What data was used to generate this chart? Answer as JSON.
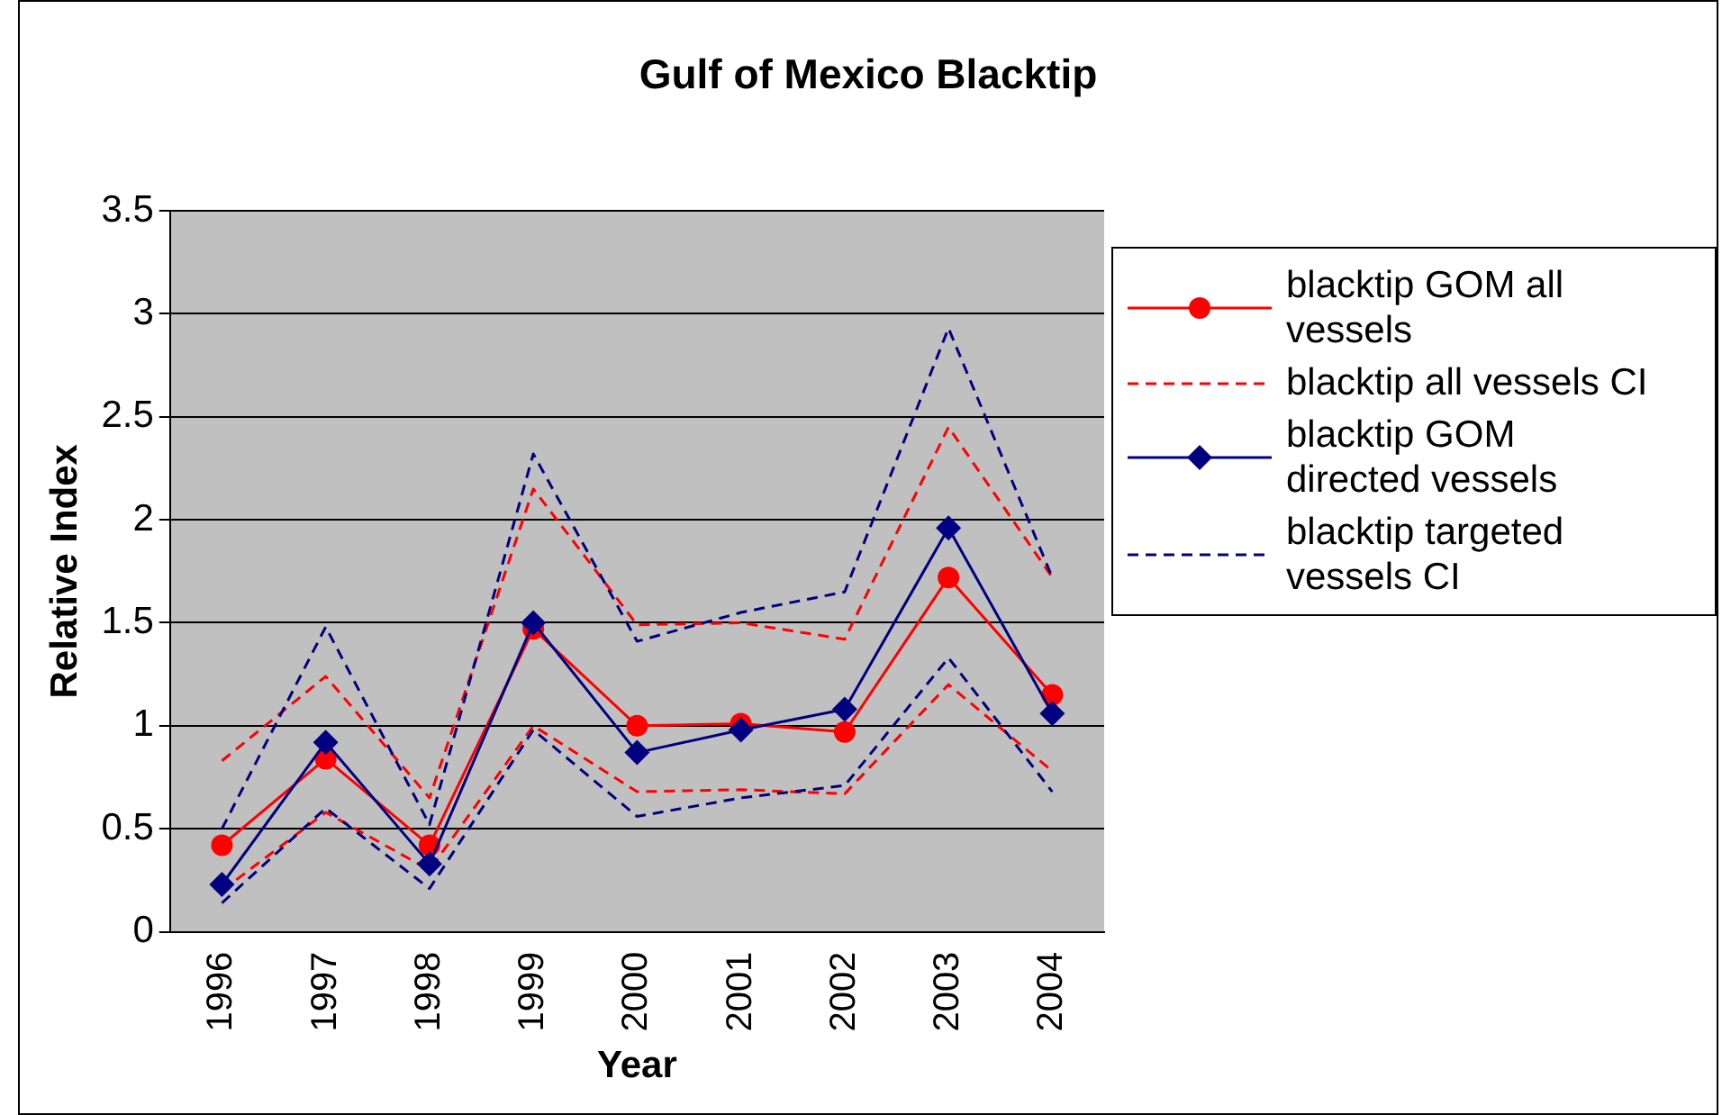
{
  "chart_data": {
    "type": "line",
    "title": "Gulf of Mexico Blacktip",
    "xlabel": "Year",
    "ylabel": "Relative Index",
    "categories": [
      "1996",
      "1997",
      "1998",
      "1999",
      "2000",
      "2001",
      "2002",
      "2003",
      "2004"
    ],
    "ylim": [
      0,
      3.5
    ],
    "yticks": [
      0,
      0.5,
      1,
      1.5,
      2,
      2.5,
      3,
      3.5
    ],
    "grid": "y",
    "legend": "right",
    "series": [
      {
        "name": "blacktip GOM all vessels",
        "color": "#ff0000",
        "marker": "circle",
        "line_style": "solid",
        "values": [
          0.42,
          0.84,
          0.42,
          1.47,
          1.0,
          1.01,
          0.97,
          1.72,
          1.15
        ]
      },
      {
        "name": "blacktip all vessels CI",
        "color": "#ff0000",
        "marker": "none",
        "line_style": "dashed",
        "values": [
          0.83,
          1.24,
          0.65,
          2.15,
          1.49,
          1.5,
          1.42,
          2.45,
          1.72
        ]
      },
      {
        "color": "#ff0000",
        "marker": "none",
        "line_style": "dashed",
        "values": [
          0.2,
          0.58,
          0.3,
          1.0,
          0.68,
          0.69,
          0.67,
          1.2,
          0.78
        ]
      },
      {
        "name": "blacktip GOM directed vessels",
        "color": "#000080",
        "marker": "diamond",
        "line_style": "solid",
        "values": [
          0.23,
          0.92,
          0.33,
          1.5,
          0.87,
          0.98,
          1.08,
          1.96,
          1.06
        ]
      },
      {
        "name": "blacktip targeted vessels CI",
        "color": "#000080",
        "marker": "none",
        "line_style": "dashed",
        "values": [
          0.5,
          1.48,
          0.52,
          2.32,
          1.41,
          1.55,
          1.65,
          2.93,
          1.72
        ]
      },
      {
        "color": "#000080",
        "marker": "none",
        "line_style": "dashed",
        "values": [
          0.14,
          0.6,
          0.21,
          0.98,
          0.56,
          0.65,
          0.71,
          1.33,
          0.68
        ]
      }
    ]
  }
}
